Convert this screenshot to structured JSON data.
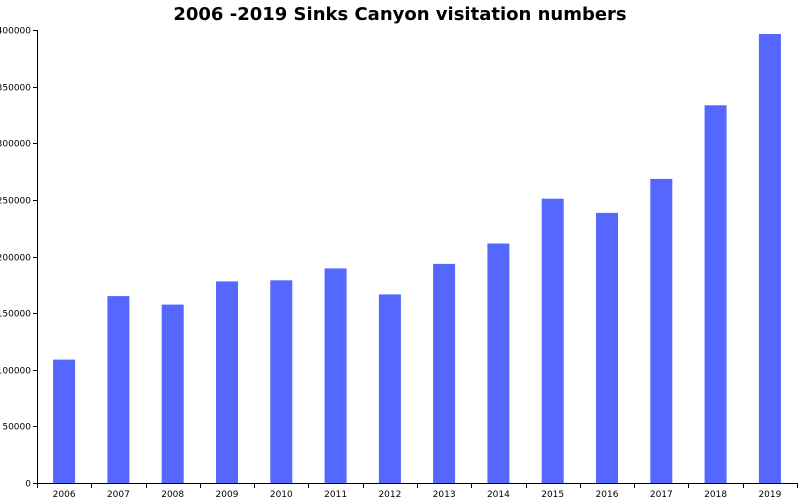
{
  "chart_data": {
    "type": "bar",
    "title": "2006 -2019 Sinks Canyon visitation numbers",
    "xlabel": "",
    "ylabel": "",
    "categories": [
      "2006",
      "2007",
      "2008",
      "2009",
      "2010",
      "2011",
      "2012",
      "2013",
      "2014",
      "2015",
      "2016",
      "2017",
      "2018",
      "2019"
    ],
    "values": [
      109000,
      165000,
      157500,
      178000,
      179000,
      189500,
      166500,
      193500,
      211500,
      251000,
      238500,
      268500,
      333500,
      396500
    ],
    "ylim": [
      0,
      400000
    ],
    "yticks": [
      "0",
      "50000",
      "100000",
      "150000",
      "200000",
      "250000",
      "300000",
      "350000",
      "400000"
    ],
    "grid": false,
    "legend": "none",
    "bar_color": "#5468ff"
  }
}
